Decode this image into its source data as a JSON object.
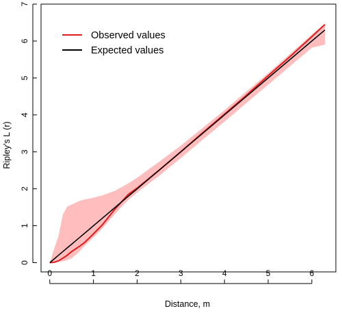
{
  "chart_data": {
    "type": "line",
    "title": "",
    "xlabel": "Distance, m",
    "ylabel": "Ripley's L (r)",
    "xlim": [
      -0.2,
      6.55
    ],
    "ylim": [
      -0.25,
      7
    ],
    "xticks": [
      0,
      1,
      2,
      3,
      4,
      5,
      6
    ],
    "yticks": [
      0,
      1,
      2,
      3,
      4,
      5,
      6,
      7
    ],
    "grid": false,
    "legend": "top-left",
    "x": [
      0,
      0.1,
      0.2,
      0.3,
      0.4,
      0.5,
      0.6,
      0.7,
      0.8,
      1.0,
      1.2,
      1.5,
      1.8,
      2.0,
      2.5,
      3.0,
      3.5,
      4.0,
      4.5,
      5.0,
      5.5,
      6.0,
      6.3
    ],
    "series": [
      {
        "name": "Observed values",
        "color": "#e31a1c",
        "values": [
          0,
          0.01,
          0.05,
          0.12,
          0.2,
          0.3,
          0.38,
          0.46,
          0.55,
          0.78,
          1.02,
          1.46,
          1.85,
          2.02,
          2.5,
          3.0,
          3.52,
          4.02,
          4.53,
          5.06,
          5.58,
          6.12,
          6.45
        ]
      },
      {
        "name": "Expected values",
        "color": "#000000",
        "values": [
          0,
          0.1,
          0.2,
          0.3,
          0.4,
          0.5,
          0.6,
          0.7,
          0.8,
          1.0,
          1.2,
          1.5,
          1.8,
          2.0,
          2.5,
          3.0,
          3.5,
          4.0,
          4.5,
          5.0,
          5.5,
          6.0,
          6.3
        ]
      }
    ],
    "envelope": {
      "color": "#ffbdbd",
      "upper": [
        0,
        0.38,
        0.72,
        1.3,
        1.52,
        1.57,
        1.63,
        1.68,
        1.71,
        1.76,
        1.82,
        1.95,
        2.15,
        2.3,
        2.73,
        3.17,
        3.65,
        4.13,
        4.63,
        5.13,
        5.65,
        6.18,
        6.47
      ],
      "lower": [
        0,
        0.01,
        0.02,
        0.04,
        0.07,
        0.12,
        0.22,
        0.33,
        0.46,
        0.68,
        0.92,
        1.33,
        1.7,
        1.9,
        2.35,
        2.83,
        3.33,
        3.82,
        4.32,
        4.82,
        5.32,
        5.82,
        5.9
      ]
    }
  }
}
